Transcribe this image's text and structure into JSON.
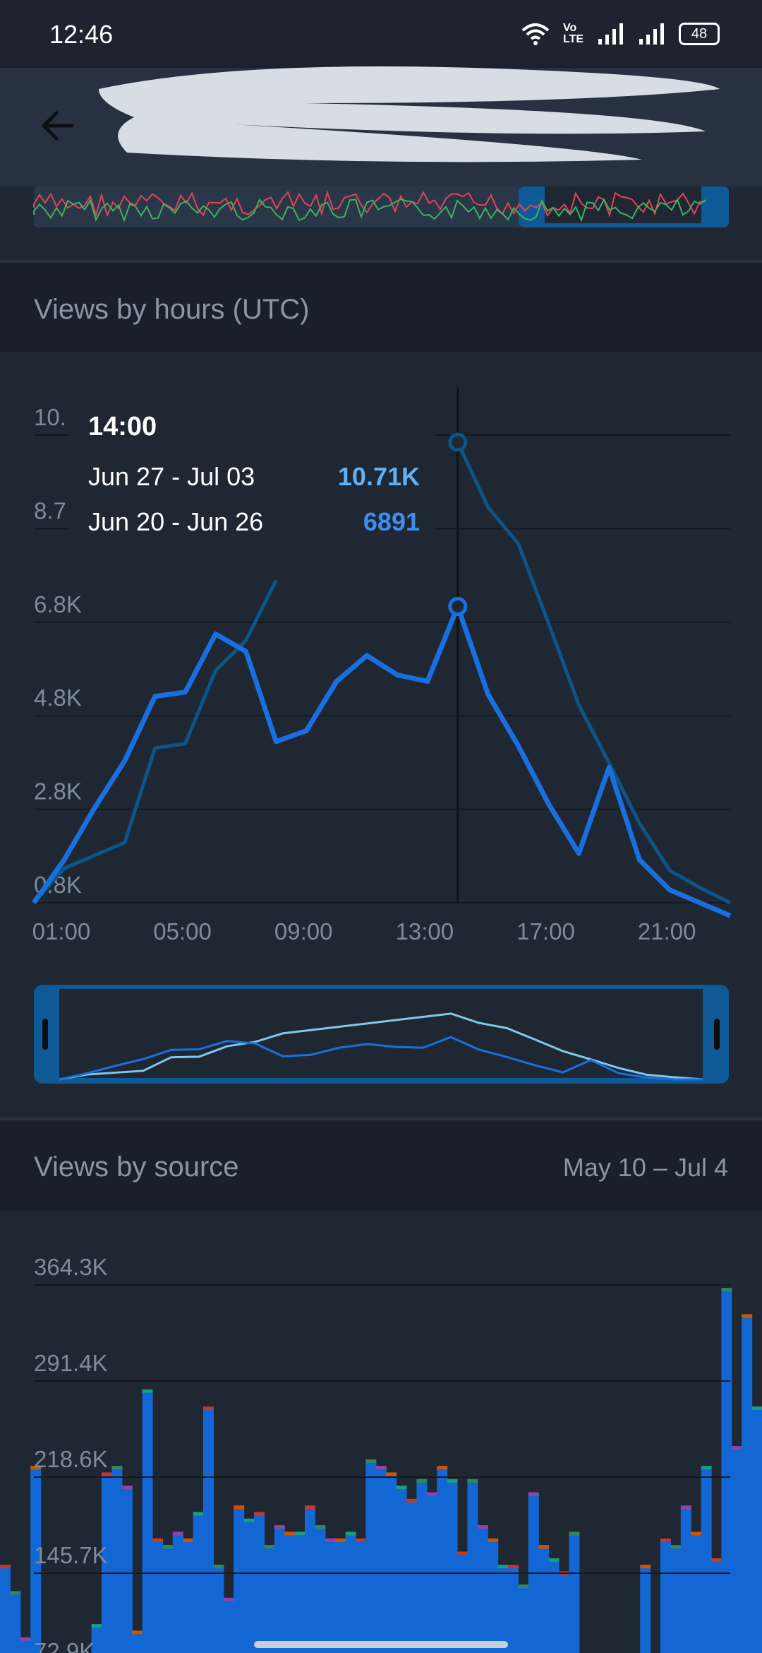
{
  "status_bar": {
    "time": "12:46",
    "network_label": "Vo LTE",
    "battery": "48"
  },
  "app_bar": {
    "back_icon": "arrow-left-icon",
    "title_redacted": true
  },
  "hours_section": {
    "title": "Views by hours (UTC)",
    "tooltip": {
      "time": "14:00",
      "rows": [
        {
          "label": "Jun 27 - Jul 03",
          "value": "10.71K"
        },
        {
          "label": "Jun 20 - Jun 26",
          "value": "6891"
        }
      ]
    }
  },
  "source_section": {
    "title": "Views by source",
    "range": "May 10 – Jul 4"
  },
  "colors": {
    "series_current": "#1a6fe0",
    "series_previous": "#0b5688",
    "source_bar": "#1367d4"
  },
  "chart_data": [
    {
      "type": "line",
      "title": "Views by hours (UTC)",
      "x": [
        "00:00",
        "01:00",
        "02:00",
        "03:00",
        "04:00",
        "05:00",
        "06:00",
        "07:00",
        "08:00",
        "09:00",
        "10:00",
        "11:00",
        "12:00",
        "13:00",
        "14:00",
        "15:00",
        "16:00",
        "17:00",
        "18:00",
        "19:00",
        "20:00",
        "21:00",
        "22:00",
        "23:00"
      ],
      "x_tick_labels": [
        "01:00",
        "05:00",
        "09:00",
        "13:00",
        "17:00",
        "21:00"
      ],
      "y_tick_labels": [
        "0.8K",
        "2.8K",
        "4.8K",
        "6.8K",
        "8.7",
        "10."
      ],
      "ylim": [
        0,
        11500
      ],
      "selected_x": "14:00",
      "series": [
        {
          "name": "Jun 20 - Jun 26",
          "values": [
            0,
            1000,
            2200,
            3300,
            4800,
            4900,
            6250,
            5850,
            3750,
            4000,
            5150,
            5750,
            5300,
            5150,
            6891,
            4850,
            3650,
            2300,
            1150,
            3150,
            1000,
            300,
            0,
            -300
          ]
        },
        {
          "name": "Jun 27 - Jul 03",
          "values": [
            0,
            800,
            1100,
            1400,
            3600,
            3700,
            5400,
            6100,
            7500,
            null,
            null,
            null,
            null,
            null,
            10710,
            9200,
            8350,
            6500,
            4600,
            3250,
            1850,
            750,
            350,
            0
          ]
        }
      ],
      "grid": true
    },
    {
      "type": "bar",
      "title": "Views by source",
      "y_tick_labels": [
        "72.9K",
        "145.7K",
        "218.6K",
        "291.4K",
        "364.3K"
      ],
      "ylim": [
        40000,
        370000
      ],
      "values": [
        150,
        130,
        95,
        225,
        60,
        70,
        58,
        45,
        80,
        105,
        220,
        225,
        210,
        100,
        283,
        170,
        165,
        175,
        170,
        190,
        270,
        150,
        125,
        195,
        185,
        190,
        165,
        180,
        175,
        175,
        195,
        180,
        170,
        170,
        175,
        170,
        230,
        225,
        220,
        210,
        200,
        215,
        205,
        225,
        215,
        160,
        215,
        180,
        170,
        150,
        150,
        135,
        205,
        165,
        155,
        145,
        175,
        80,
        75,
        75,
        65,
        65,
        50,
        150,
        60,
        170,
        165,
        195,
        175,
        225,
        155,
        360,
        240,
        340,
        270
      ]
    }
  ]
}
